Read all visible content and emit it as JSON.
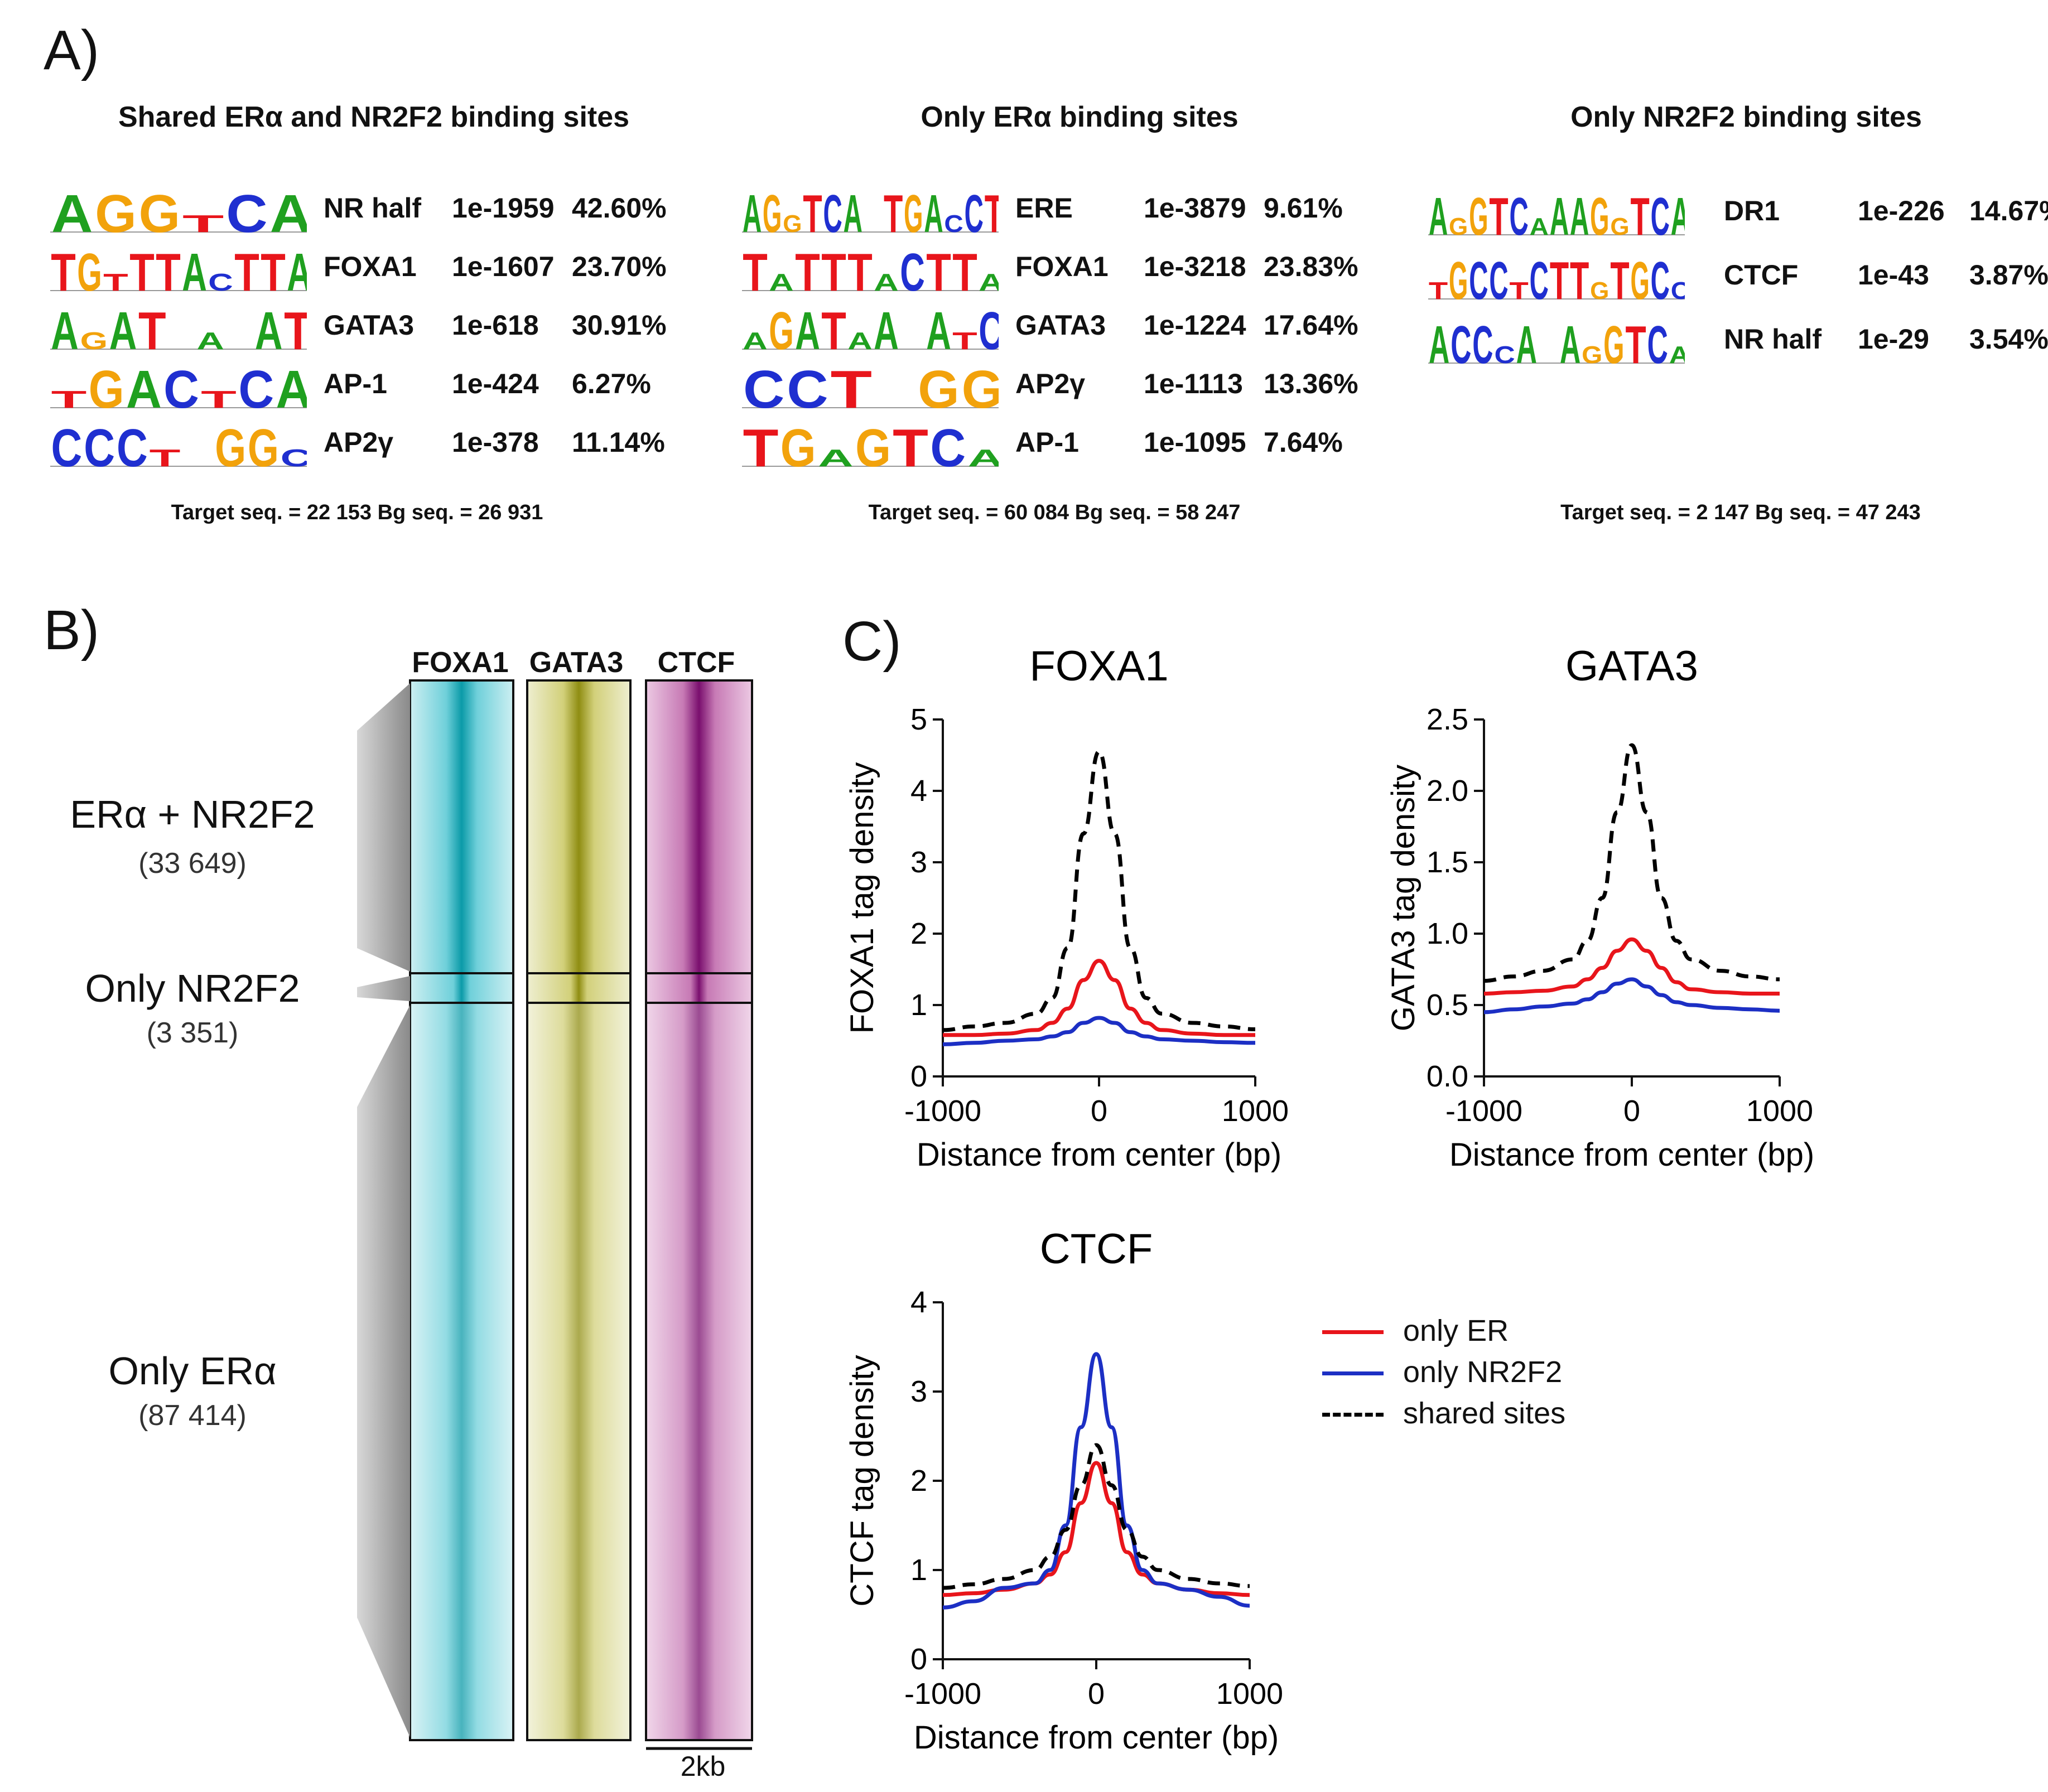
{
  "panel_a": {
    "label": "A)",
    "columns": [
      {
        "title": "Shared ERα and NR2F2 binding sites",
        "motifs": [
          {
            "logo": "AGGTCA",
            "name": "NR half",
            "pvalue": "1e-1959",
            "percent": "42.60%"
          },
          {
            "logo": "TGTTTACTTA",
            "name": "FOXA1",
            "pvalue": "1e-1607",
            "percent": "23.70%"
          },
          {
            "logo": "AGAT_A_AT",
            "name": "GATA3",
            "pvalue": "1e-618",
            "percent": "30.91%"
          },
          {
            "logo": "TGACTCA",
            "name": "AP-1",
            "pvalue": "1e-424",
            "percent": "6.27%"
          },
          {
            "logo": "CCCT_GGC",
            "name": "AP2γ",
            "pvalue": "1e-378",
            "percent": "11.14%"
          }
        ],
        "target": "Target seq. = 22 153 Bg seq. = 26 931"
      },
      {
        "title": "Only ERα binding sites",
        "motifs": [
          {
            "logo": "AGGTCA_TGACCT",
            "name": "ERE",
            "pvalue": "1e-3879",
            "percent": "9.61%"
          },
          {
            "logo": "TATTTACTTA",
            "name": "FOXA1",
            "pvalue": "1e-3218",
            "percent": "23.83%"
          },
          {
            "logo": "AGATAA_ATC",
            "name": "GATA3",
            "pvalue": "1e-1224",
            "percent": "17.64%"
          },
          {
            "logo": "CCT_GG",
            "name": "AP2γ",
            "pvalue": "1e-1113",
            "percent": "13.36%"
          },
          {
            "logo": "TGAGTCA",
            "name": "AP-1",
            "pvalue": "1e-1095",
            "percent": "7.64%"
          }
        ],
        "target": "Target seq. = 60 084  Bg seq. = 58 247"
      },
      {
        "title": "Only NR2F2 binding sites",
        "motifs": [
          {
            "logo": "AGGTCAAAGGTCA",
            "name": "DR1",
            "pvalue": "1e-226",
            "percent": "14.67%"
          },
          {
            "logo": "TGCCTCTTGTGCC",
            "name": "CTCF",
            "pvalue": "1e-43",
            "percent": "3.87%"
          },
          {
            "logo": "ACCCA_AGGTCA",
            "name": "NR half",
            "pvalue": "1e-29",
            "percent": "3.54%"
          }
        ],
        "target": "Target seq. = 2 147  Bg seq. = 47 243"
      }
    ]
  },
  "panel_b": {
    "label": "B)",
    "columns": [
      "FOXA1",
      "GATA3",
      "CTCF"
    ],
    "groups": [
      {
        "name": "ERα + NR2F2",
        "count": "(33 649)"
      },
      {
        "name": "Only NR2F2",
        "count": "(3 351)"
      },
      {
        "name": "Only ERα",
        "count": "(87 414)"
      }
    ],
    "scale_label": "2kb",
    "colors": {
      "FOXA1": "#1aa3b3",
      "GATA3": "#9c9a1a",
      "CTCF": "#8a1a7a"
    }
  },
  "panel_c": {
    "label": "C)",
    "legend": [
      {
        "label": "only ER",
        "color": "#e8151b",
        "dash": false
      },
      {
        "label": "only NR2F2",
        "color": "#1c2fc4",
        "dash": false
      },
      {
        "label": "shared sites",
        "color": "#000000",
        "dash": true
      }
    ]
  },
  "chart_data": [
    {
      "type": "line",
      "title": "FOXA1",
      "xlabel": "Distance from center (bp)",
      "ylabel": "FOXA1 tag density",
      "xlim": [
        -1000,
        1000
      ],
      "ylim": [
        0,
        5
      ],
      "xticks": [
        "-1000",
        "0",
        "1000"
      ],
      "yticks": [
        "0",
        "1",
        "2",
        "3",
        "4",
        "5"
      ],
      "x": [
        -1000,
        -800,
        -600,
        -400,
        -300,
        -200,
        -100,
        0,
        100,
        200,
        300,
        400,
        600,
        800,
        1000
      ],
      "series": [
        {
          "name": "only ER",
          "color": "#e8151b",
          "values": [
            0.58,
            0.58,
            0.6,
            0.65,
            0.75,
            0.95,
            1.35,
            1.62,
            1.35,
            0.95,
            0.75,
            0.65,
            0.6,
            0.58,
            0.58
          ]
        },
        {
          "name": "only NR2F2",
          "color": "#1c2fc4",
          "values": [
            0.45,
            0.47,
            0.5,
            0.52,
            0.56,
            0.62,
            0.75,
            0.82,
            0.75,
            0.62,
            0.56,
            0.52,
            0.5,
            0.48,
            0.47
          ]
        },
        {
          "name": "shared sites",
          "color": "#000000",
          "dash": true,
          "values": [
            0.65,
            0.7,
            0.75,
            0.88,
            1.1,
            1.8,
            3.4,
            4.55,
            3.4,
            1.8,
            1.1,
            0.88,
            0.75,
            0.7,
            0.66
          ]
        }
      ]
    },
    {
      "type": "line",
      "title": "GATA3",
      "xlabel": "Distance from center (bp)",
      "ylabel": "GATA3 tag density",
      "xlim": [
        -1000,
        1000
      ],
      "ylim": [
        0,
        2.5
      ],
      "xticks": [
        "-1000",
        "0",
        "1000"
      ],
      "yticks": [
        "0.0",
        "0.5",
        "1.0",
        "1.5",
        "2.0",
        "2.5"
      ],
      "x": [
        -1000,
        -800,
        -600,
        -400,
        -300,
        -200,
        -100,
        0,
        100,
        200,
        300,
        400,
        600,
        800,
        1000
      ],
      "series": [
        {
          "name": "only ER",
          "color": "#e8151b",
          "values": [
            0.58,
            0.59,
            0.6,
            0.63,
            0.68,
            0.76,
            0.88,
            0.96,
            0.88,
            0.76,
            0.66,
            0.61,
            0.59,
            0.58,
            0.58
          ]
        },
        {
          "name": "only NR2F2",
          "color": "#1c2fc4",
          "values": [
            0.45,
            0.47,
            0.49,
            0.51,
            0.54,
            0.59,
            0.65,
            0.68,
            0.63,
            0.57,
            0.52,
            0.5,
            0.48,
            0.47,
            0.46
          ]
        },
        {
          "name": "shared sites",
          "color": "#000000",
          "dash": true,
          "values": [
            0.67,
            0.7,
            0.74,
            0.82,
            0.95,
            1.25,
            1.85,
            2.32,
            1.85,
            1.25,
            0.95,
            0.82,
            0.74,
            0.7,
            0.68
          ]
        }
      ]
    },
    {
      "type": "line",
      "title": "CTCF",
      "xlabel": "Distance from center (bp)",
      "ylabel": "CTCF tag density",
      "xlim": [
        -1000,
        1000
      ],
      "ylim": [
        0,
        4
      ],
      "xticks": [
        "-1000",
        "0",
        "1000"
      ],
      "yticks": [
        "0",
        "1",
        "2",
        "3",
        "4"
      ],
      "x": [
        -1000,
        -800,
        -600,
        -400,
        -300,
        -200,
        -100,
        0,
        100,
        200,
        300,
        400,
        600,
        800,
        1000
      ],
      "series": [
        {
          "name": "only ER",
          "color": "#e8151b",
          "values": [
            0.72,
            0.74,
            0.78,
            0.85,
            0.95,
            1.2,
            1.75,
            2.2,
            1.75,
            1.2,
            0.95,
            0.85,
            0.78,
            0.74,
            0.72
          ]
        },
        {
          "name": "only NR2F2",
          "color": "#1c2fc4",
          "values": [
            0.58,
            0.65,
            0.8,
            0.85,
            1.0,
            1.5,
            2.6,
            3.42,
            2.6,
            1.5,
            1.0,
            0.85,
            0.78,
            0.7,
            0.6
          ]
        },
        {
          "name": "shared sites",
          "color": "#000000",
          "dash": true,
          "values": [
            0.8,
            0.84,
            0.9,
            1.0,
            1.15,
            1.45,
            1.95,
            2.4,
            1.95,
            1.45,
            1.15,
            1.0,
            0.9,
            0.85,
            0.82
          ]
        }
      ]
    }
  ]
}
